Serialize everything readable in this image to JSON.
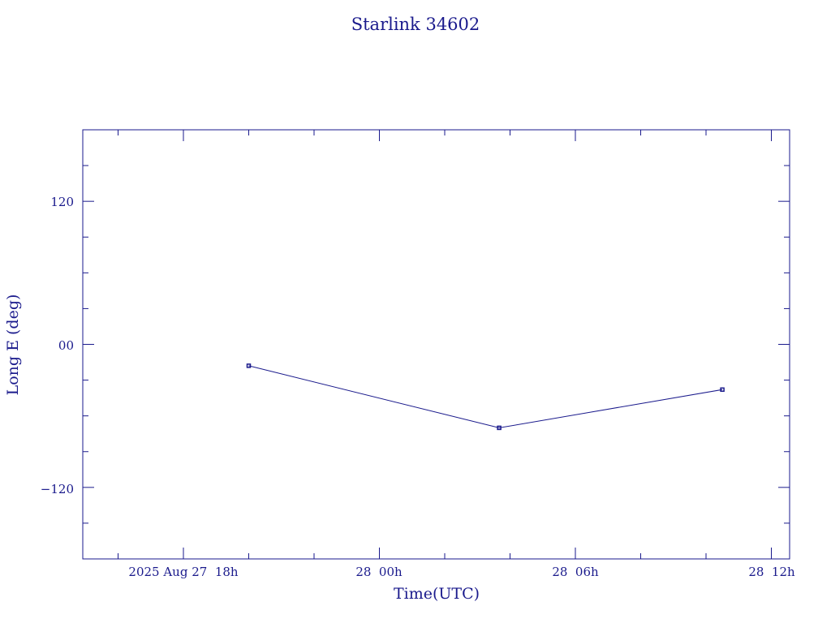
{
  "chart_data": {
    "type": "line",
    "title": "Starlink 34602",
    "xlabel": "Time(UTC)",
    "ylabel": "Long E (deg)",
    "x_tick_labels": [
      "2025 Aug 27  18h",
      "28  00h",
      "28  06h",
      "28  12h"
    ],
    "y_tick_labels": [
      "120",
      "00",
      "−120"
    ],
    "y_ticks": [
      120,
      0,
      -120
    ],
    "ylim": [
      -180,
      180
    ],
    "grid": false,
    "legend": "none",
    "series": [
      {
        "x": [
          "2025-08-27 20:00",
          "2025-08-28 03:40",
          "2025-08-28 10:30"
        ],
        "y": [
          -18,
          -70,
          -38
        ]
      }
    ],
    "colors": {
      "ink": "#1a1a8c"
    }
  }
}
